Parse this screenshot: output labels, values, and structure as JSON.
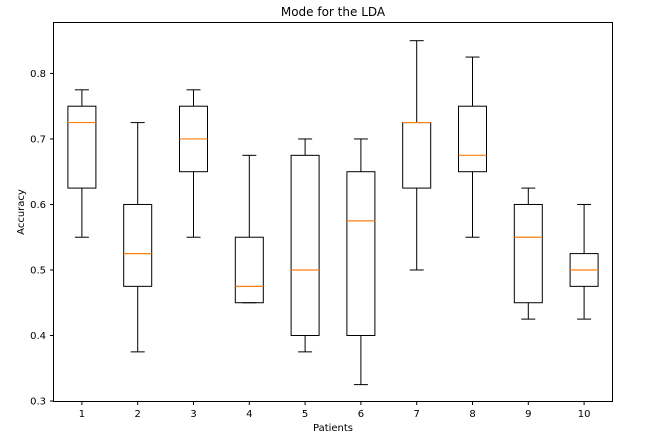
{
  "chart_data": {
    "type": "boxplot",
    "title": "Mode for the LDA",
    "xlabel": "Patients",
    "ylabel": "Accuracy",
    "ylim": [
      0.3,
      0.9
    ],
    "yticks": [
      0.3,
      0.4,
      0.5,
      0.6,
      0.7,
      0.8
    ],
    "categories": [
      "1",
      "2",
      "3",
      "4",
      "5",
      "6",
      "7",
      "8",
      "9",
      "10"
    ],
    "boxes": [
      {
        "category": "1",
        "whisker_low": 0.55,
        "q1": 0.625,
        "median": 0.725,
        "q3": 0.75,
        "whisker_high": 0.775
      },
      {
        "category": "2",
        "whisker_low": 0.375,
        "q1": 0.475,
        "median": 0.525,
        "q3": 0.6,
        "whisker_high": 0.725
      },
      {
        "category": "3",
        "whisker_low": 0.55,
        "q1": 0.65,
        "median": 0.7,
        "q3": 0.75,
        "whisker_high": 0.775
      },
      {
        "category": "4",
        "whisker_low": 0.45,
        "q1": 0.45,
        "median": 0.475,
        "q3": 0.55,
        "whisker_high": 0.675
      },
      {
        "category": "5",
        "whisker_low": 0.375,
        "q1": 0.4,
        "median": 0.5,
        "q3": 0.675,
        "whisker_high": 0.7
      },
      {
        "category": "6",
        "whisker_low": 0.325,
        "q1": 0.4,
        "median": 0.575,
        "q3": 0.65,
        "whisker_high": 0.7
      },
      {
        "category": "7",
        "whisker_low": 0.5,
        "q1": 0.625,
        "median": 0.725,
        "q3": 0.725,
        "whisker_high": 0.85
      },
      {
        "category": "8",
        "whisker_low": 0.55,
        "q1": 0.65,
        "median": 0.675,
        "q3": 0.75,
        "whisker_high": 0.825
      },
      {
        "category": "9",
        "whisker_low": 0.425,
        "q1": 0.45,
        "median": 0.55,
        "q3": 0.6,
        "whisker_high": 0.625
      },
      {
        "category": "10",
        "whisker_low": 0.425,
        "q1": 0.475,
        "median": 0.5,
        "q3": 0.525,
        "whisker_high": 0.6
      }
    ],
    "grid": false,
    "colors": {
      "box_edge": "#000000",
      "median_line": "#ff7f0e",
      "background": "#ffffff"
    }
  }
}
